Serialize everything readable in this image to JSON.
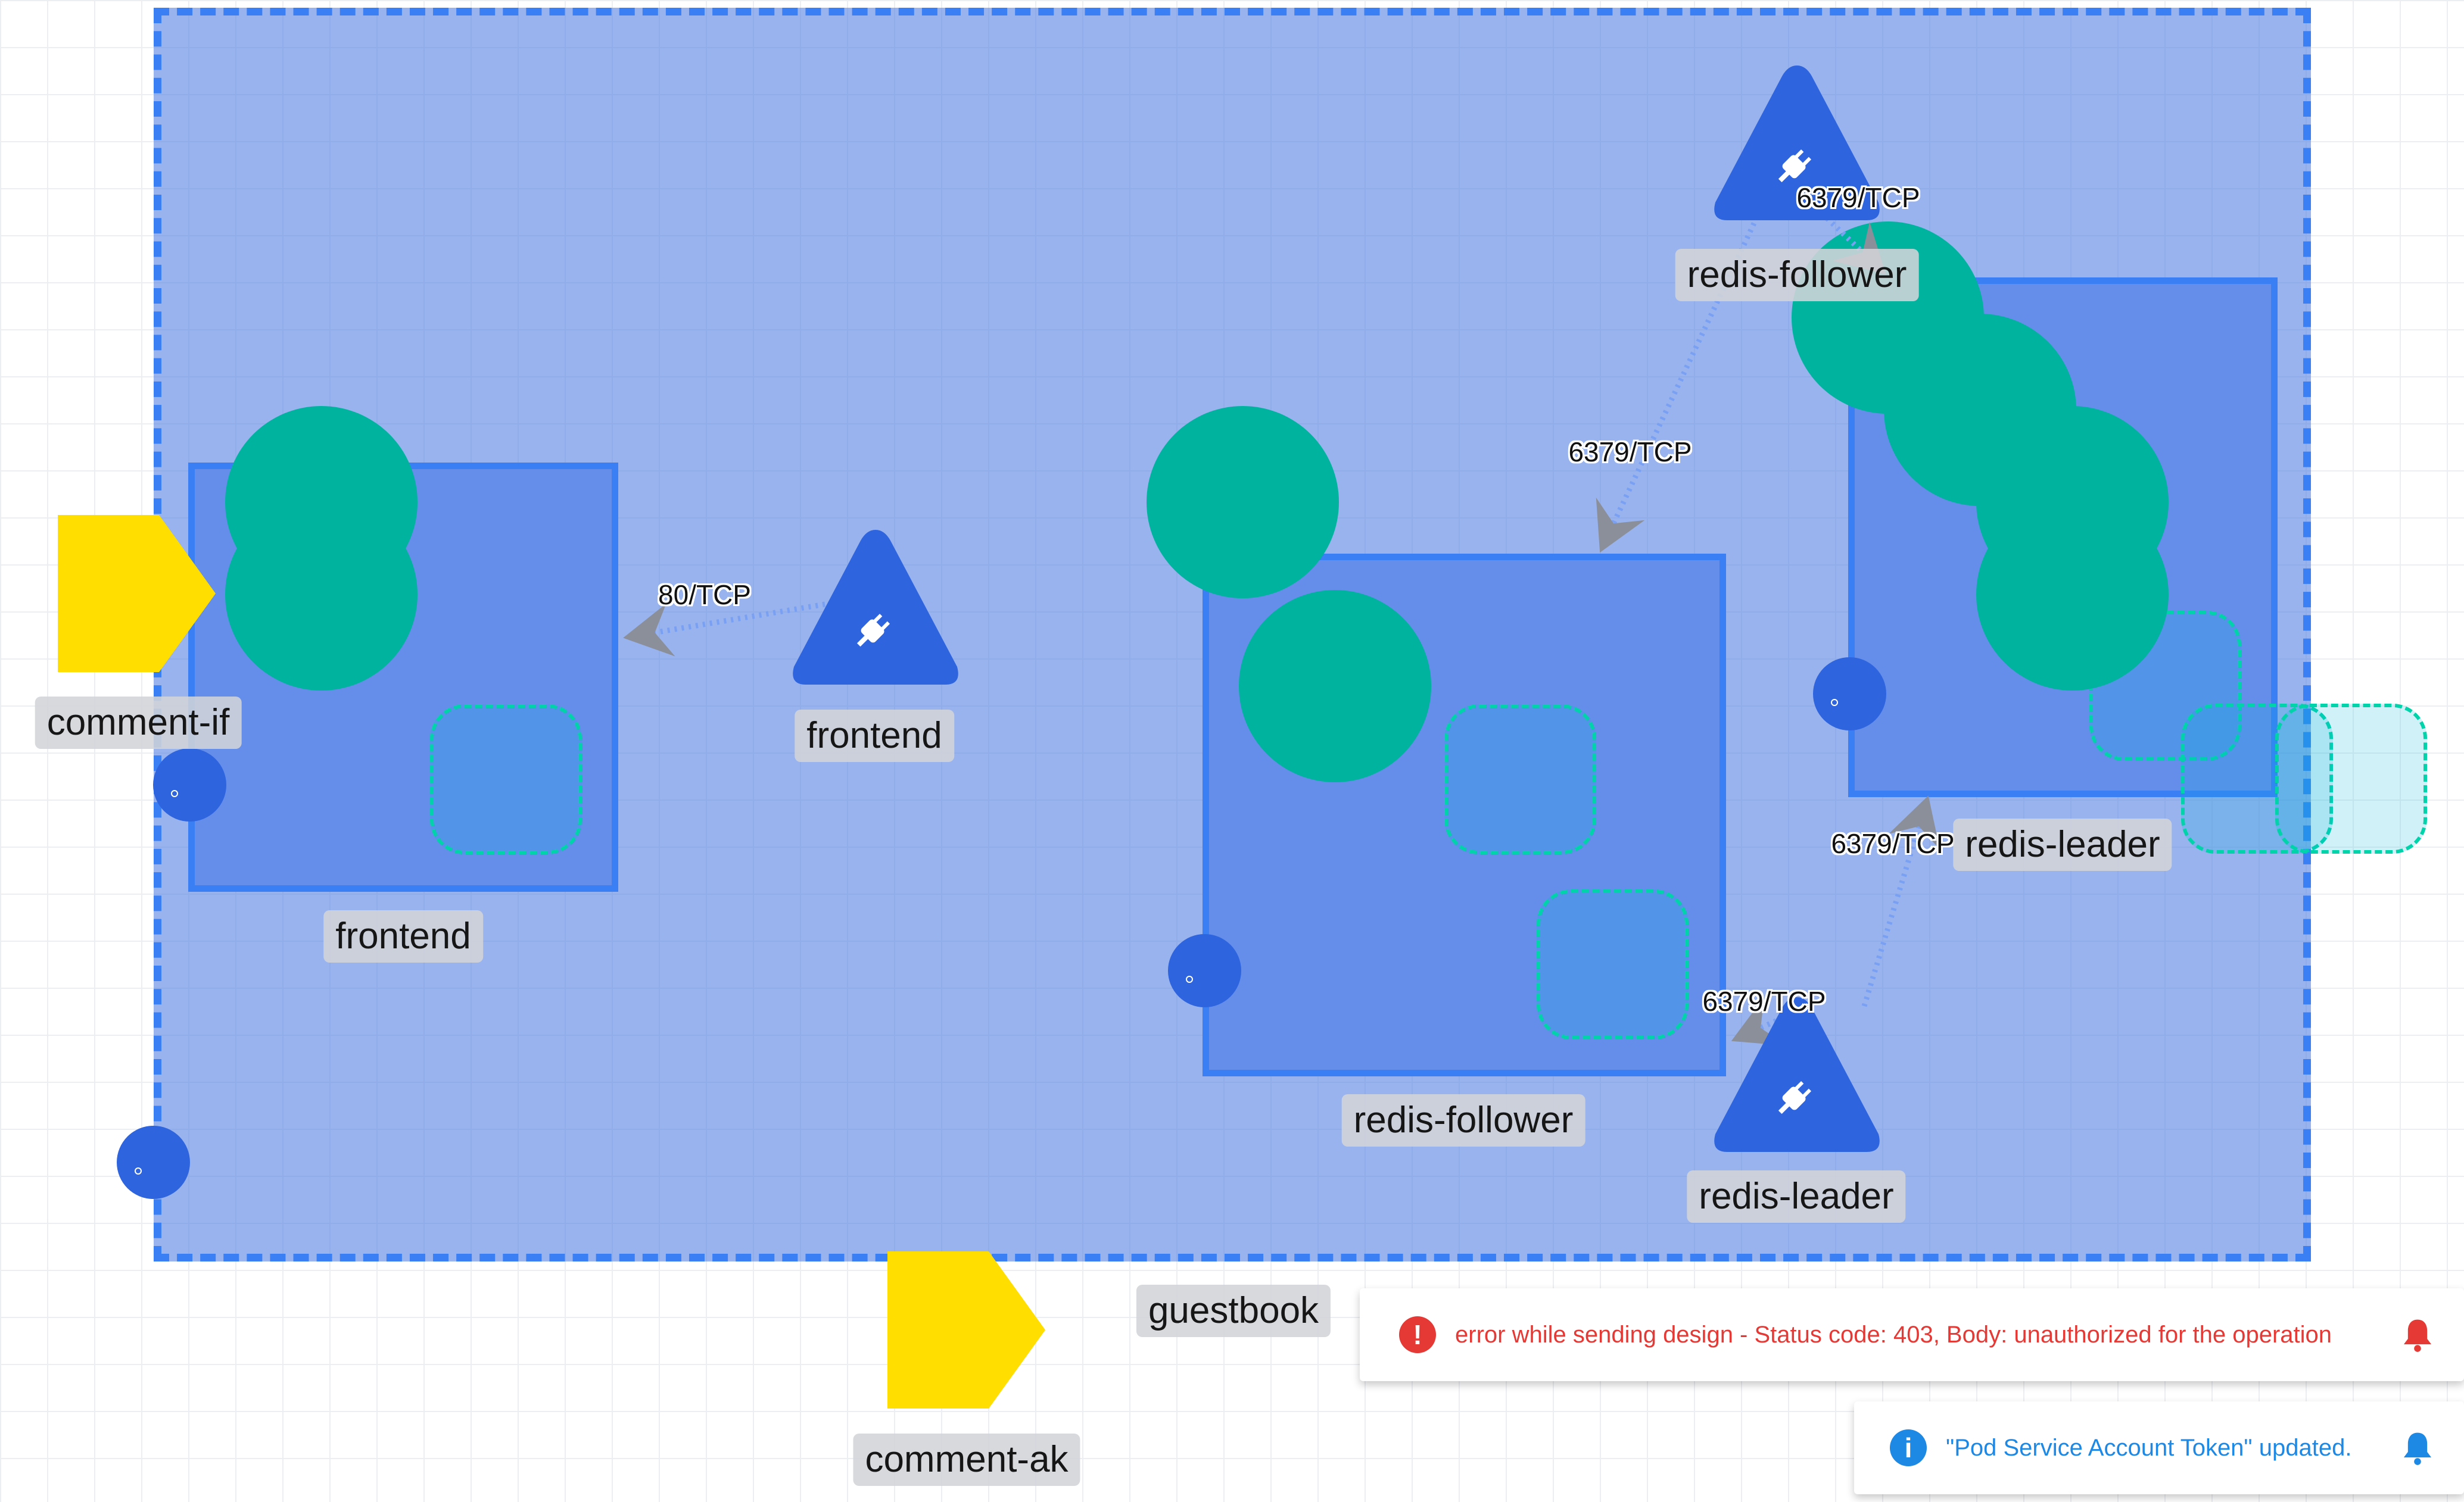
{
  "namespace": {
    "label": "guestbook"
  },
  "deployments": {
    "frontend": "frontend",
    "redis_follower": "redis-follower",
    "redis_leader": "redis-leader"
  },
  "services": {
    "frontend": "frontend",
    "redis_follower": "redis-follower",
    "redis_leader": "redis-leader"
  },
  "ingress": {
    "comment_if": "comment-if",
    "comment_ak": "comment-ak"
  },
  "edges": {
    "frontend_port": "80/TCP",
    "follower_port": "6379/TCP",
    "follower_top_port": "6379/TCP",
    "leader_port": "6379/TCP",
    "leader_up_port": "6379/TCP"
  },
  "notifications": {
    "error": "error while sending design - Status code: 403, Body: unauthorized for the operation",
    "info": "\"Pod Service Account Token\" updated."
  },
  "colors": {
    "namespace_fill": "#5c86e4",
    "deployment_fill": "#648ee9",
    "pod": "#00b39f",
    "service": "#2f64df",
    "ingress": "#ffde00",
    "error": "#e53935",
    "info": "#1e88e5"
  },
  "icons": {
    "service": "plug-icon",
    "error": "exclamation-circle-icon",
    "info": "info-circle-icon",
    "bell": "bell-icon"
  }
}
